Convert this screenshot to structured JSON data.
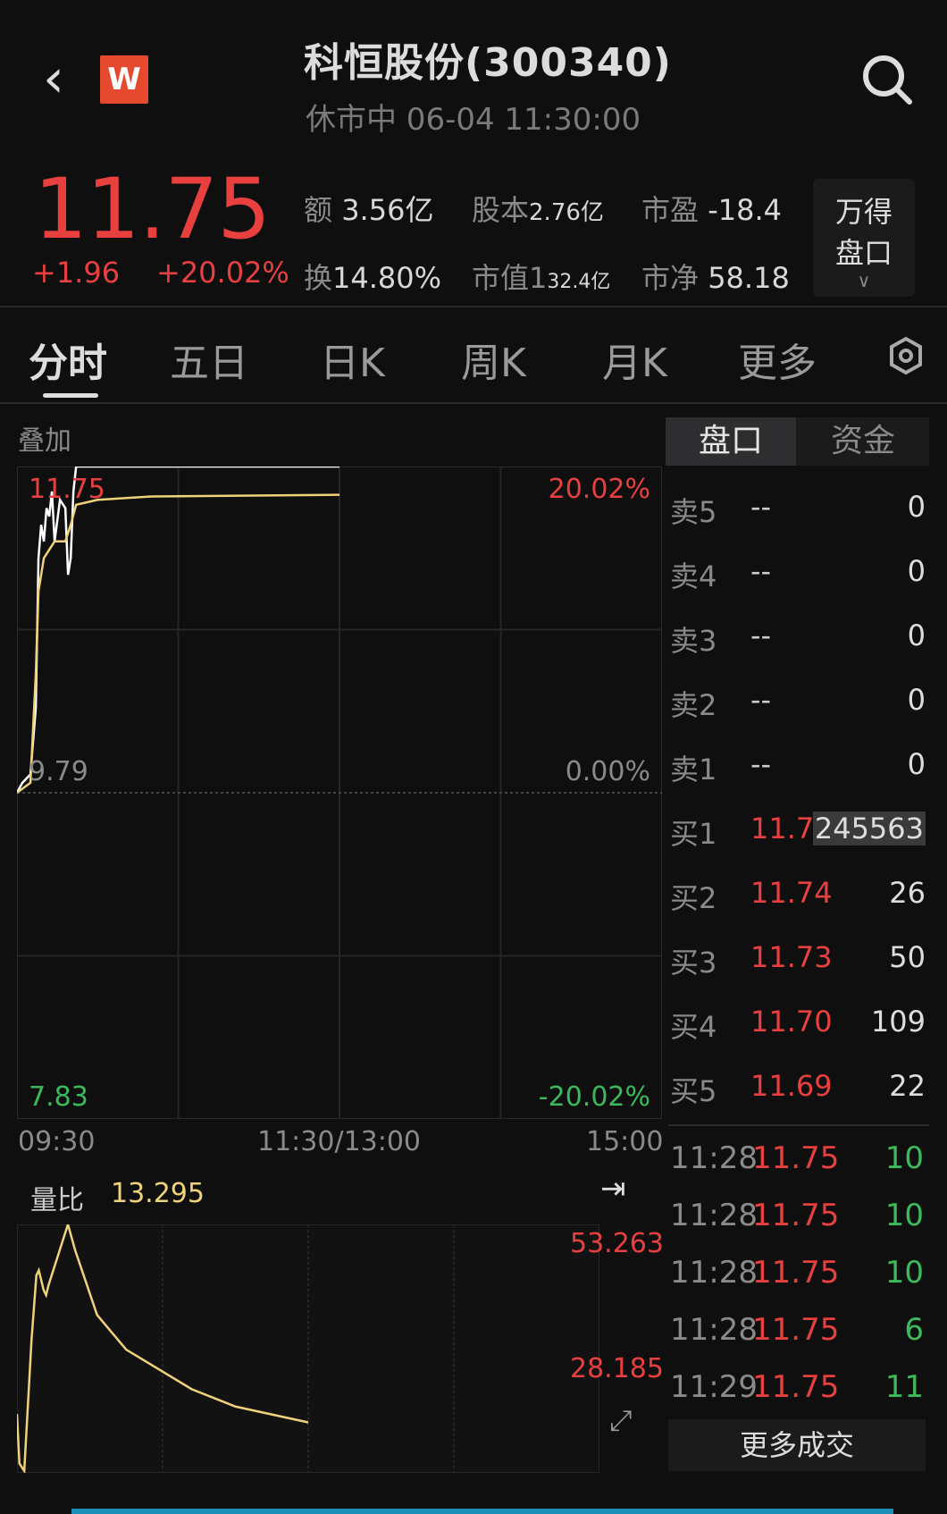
{
  "header": {
    "back_icon": "chevron-left-icon",
    "logo_text": "W",
    "title": "科恒股份(300340)",
    "subtitle": "休市中 06-04 11:30:00",
    "search_icon": "search-icon"
  },
  "quote": {
    "price": "11.75",
    "change": "+1.96",
    "change_pct": "+20.02%",
    "stats": [
      {
        "k": "额",
        "v": "3.56亿"
      },
      {
        "k": "股本",
        "v": "2.76亿"
      },
      {
        "k": "市盈",
        "v": "-18.4"
      },
      {
        "k": "换",
        "v": "14.80%"
      },
      {
        "k": "市值1",
        "v": "32.4亿"
      },
      {
        "k": "市净",
        "v": "58.18"
      }
    ],
    "wind_button": [
      "万得",
      "盘口"
    ]
  },
  "tabs": [
    "分时",
    "五日",
    "日K",
    "周K",
    "月K",
    "更多"
  ],
  "settings_icon": "hexagon-gear-icon",
  "overlay_label": "叠加",
  "panel_tabs": [
    "盘口",
    "资金"
  ],
  "order_book": [
    {
      "label": "卖5",
      "price": "--",
      "vol": "0"
    },
    {
      "label": "卖4",
      "price": "--",
      "vol": "0"
    },
    {
      "label": "卖3",
      "price": "--",
      "vol": "0"
    },
    {
      "label": "卖2",
      "price": "--",
      "vol": "0"
    },
    {
      "label": "卖1",
      "price": "--",
      "vol": "0"
    },
    {
      "label": "买1",
      "price": "11.75",
      "vol": "245563"
    },
    {
      "label": "买2",
      "price": "11.74",
      "vol": "26"
    },
    {
      "label": "买3",
      "price": "11.73",
      "vol": "50"
    },
    {
      "label": "买4",
      "price": "11.70",
      "vol": "109"
    },
    {
      "label": "买5",
      "price": "11.69",
      "vol": "22"
    }
  ],
  "trades": [
    {
      "t": "11:28",
      "p": "11.75",
      "v": "10"
    },
    {
      "t": "11:28",
      "p": "11.75",
      "v": "10"
    },
    {
      "t": "11:28",
      "p": "11.75",
      "v": "10"
    },
    {
      "t": "11:28",
      "p": "11.75",
      "v": "6"
    },
    {
      "t": "11:29",
      "p": "11.75",
      "v": "11"
    }
  ],
  "more_trades": "更多成交",
  "volume_ratio": {
    "label": "量比",
    "value": "13.295"
  },
  "colors": {
    "up": "#e8403f",
    "down": "#3cb95a",
    "avg": "#f0d27a",
    "price": "#ffffff"
  },
  "chart_data": [
    {
      "type": "line",
      "ylim": [
        7.83,
        11.75
      ],
      "y_labels_left": [
        "11.75",
        "9.79",
        "7.83"
      ],
      "y_labels_right": [
        "20.02%",
        "0.00%",
        "-20.02%"
      ],
      "x_ticks": [
        "09:30",
        "11:30/13:00",
        "15:00"
      ],
      "grid": true,
      "series": [
        {
          "x": [
            "09:30",
            "09:32",
            "09:35",
            "09:37",
            "09:38",
            "09:39",
            "09:40",
            "09:41",
            "09:42",
            "09:43",
            "09:44",
            "09:46",
            "09:48",
            "09:49",
            "09:50",
            "09:51",
            "09:52",
            "11:30"
          ],
          "values": [
            9.79,
            9.85,
            9.9,
            10.3,
            11.2,
            11.4,
            11.3,
            11.5,
            11.45,
            11.6,
            11.3,
            11.55,
            11.5,
            11.1,
            11.2,
            11.6,
            11.75,
            11.75
          ],
          "color": "#ffffff"
        },
        {
          "x": [
            "09:30",
            "09:35",
            "09:37",
            "09:38",
            "09:40",
            "09:44",
            "09:48",
            "09:50",
            "09:52",
            "10:00",
            "10:20",
            "11:30"
          ],
          "values": [
            9.79,
            9.85,
            10.5,
            11.0,
            11.2,
            11.3,
            11.3,
            11.4,
            11.52,
            11.55,
            11.57,
            11.58
          ],
          "color": "#f0d27a"
        }
      ]
    },
    {
      "type": "line",
      "ylim": [
        3.107,
        53.263
      ],
      "y_labels": [
        "53.263",
        "28.185"
      ],
      "x": [
        "09:30",
        "09:31",
        "09:33",
        "09:36",
        "09:38",
        "09:39",
        "09:41",
        "09:42",
        "09:43",
        "09:51",
        "09:54",
        "10:03",
        "10:15",
        "10:42",
        "11:00",
        "11:30"
      ],
      "values": [
        15,
        5,
        3.5,
        30,
        43,
        44,
        40,
        39,
        41,
        53.263,
        48,
        35,
        28,
        20,
        16.5,
        13.295
      ],
      "color": "#f0d27a"
    }
  ]
}
